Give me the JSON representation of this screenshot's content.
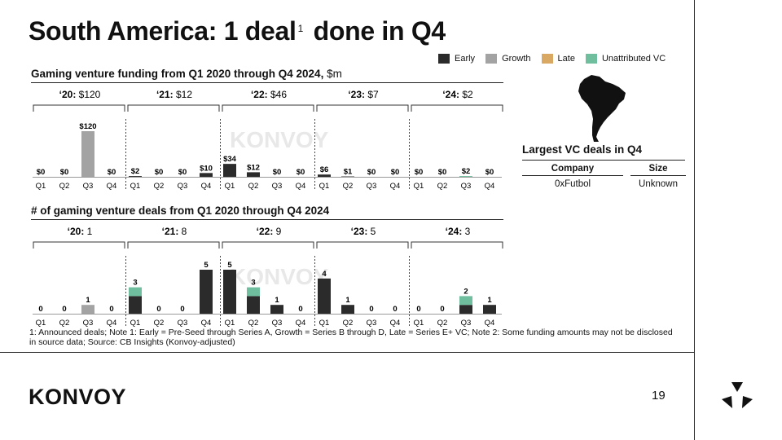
{
  "slide": {
    "title_main": "South America: 1 deal",
    "title_sup": "1",
    "title_end": " done in Q4",
    "page_number": "19",
    "brand": "KONVOY",
    "watermark": "KONVOY",
    "footnote": "1: Announced deals; Note 1: Early = Pre-Seed through Series A, Growth = Series B through D, Late = Series E+ VC; Note 2: Some funding amounts may not be disclosed in source data; Source: CB Insights (Konvoy-adjusted)"
  },
  "legend": [
    {
      "name": "Early",
      "color": "#2b2b2b"
    },
    {
      "name": "Growth",
      "color": "#a3a3a3"
    },
    {
      "name": "Late",
      "color": "#d9a964"
    },
    {
      "name": "Unattributed VC",
      "color": "#6fbf9e"
    }
  ],
  "largest_vc": {
    "title": "Largest VC deals in Q4",
    "columns": [
      "Company",
      "Size"
    ],
    "rows": [
      [
        "0xFutbol",
        "Unknown"
      ]
    ]
  },
  "chart_data": [
    {
      "type": "bar",
      "title": "Gaming venture funding from Q1 2020 through Q4 2024, ",
      "unit": "$m",
      "stacked": true,
      "categories": [
        "Q1",
        "Q2",
        "Q3",
        "Q4",
        "Q1",
        "Q2",
        "Q3",
        "Q4",
        "Q1",
        "Q2",
        "Q3",
        "Q4",
        "Q1",
        "Q2",
        "Q3",
        "Q4",
        "Q1",
        "Q2",
        "Q3",
        "Q4"
      ],
      "groups": [
        {
          "year": "‘20:",
          "total": "$120"
        },
        {
          "year": "‘21:",
          "total": "$12"
        },
        {
          "year": "‘22:",
          "total": "$46"
        },
        {
          "year": "‘23:",
          "total": "$7"
        },
        {
          "year": "‘24:",
          "total": "$2"
        }
      ],
      "series": [
        {
          "name": "Early",
          "color": "#2b2b2b",
          "values": [
            0,
            0,
            0,
            0,
            2,
            0,
            0,
            10,
            34,
            12,
            0,
            0,
            6,
            1,
            0,
            0,
            0,
            0,
            0,
            0
          ]
        },
        {
          "name": "Growth",
          "color": "#a3a3a3",
          "values": [
            0,
            0,
            120,
            0,
            0,
            0,
            0,
            0,
            0,
            0,
            0,
            0,
            0,
            0,
            0,
            0,
            0,
            0,
            0,
            0
          ]
        },
        {
          "name": "Unattributed VC",
          "color": "#6fbf9e",
          "values": [
            0,
            0,
            0,
            0,
            0,
            0,
            0,
            0,
            0,
            0,
            0,
            0,
            0,
            0,
            0,
            0,
            0,
            0,
            2,
            0
          ]
        }
      ],
      "labels": [
        "$0",
        "$0",
        "$120",
        "$0",
        "$2",
        "$0",
        "$0",
        "$10",
        "$34",
        "$12",
        "$0",
        "$0",
        "$6",
        "$1",
        "$0",
        "$0",
        "$0",
        "$0",
        "$2",
        "$0"
      ],
      "ylim": [
        0,
        120
      ]
    },
    {
      "type": "bar",
      "title": "# of gaming venture deals from Q1 2020 through Q4 2024",
      "unit": "",
      "stacked": true,
      "categories": [
        "Q1",
        "Q2",
        "Q3",
        "Q4",
        "Q1",
        "Q2",
        "Q3",
        "Q4",
        "Q1",
        "Q2",
        "Q3",
        "Q4",
        "Q1",
        "Q2",
        "Q3",
        "Q4",
        "Q1",
        "Q2",
        "Q3",
        "Q4"
      ],
      "groups": [
        {
          "year": "‘20:",
          "total": "1"
        },
        {
          "year": "‘21:",
          "total": "8"
        },
        {
          "year": "‘22:",
          "total": "9"
        },
        {
          "year": "‘23:",
          "total": "5"
        },
        {
          "year": "‘24:",
          "total": "3"
        }
      ],
      "series": [
        {
          "name": "Early",
          "color": "#2b2b2b",
          "values": [
            0,
            0,
            0,
            0,
            2,
            0,
            0,
            5,
            5,
            2,
            1,
            0,
            4,
            1,
            0,
            0,
            0,
            0,
            1,
            1
          ]
        },
        {
          "name": "Growth",
          "color": "#a3a3a3",
          "values": [
            0,
            0,
            1,
            0,
            0,
            0,
            0,
            0,
            0,
            0,
            0,
            0,
            0,
            0,
            0,
            0,
            0,
            0,
            0,
            0
          ]
        },
        {
          "name": "Unattributed VC",
          "color": "#6fbf9e",
          "values": [
            0,
            0,
            0,
            0,
            1,
            0,
            0,
            0,
            0,
            1,
            0,
            0,
            0,
            0,
            0,
            0,
            0,
            0,
            1,
            0
          ]
        }
      ],
      "labels": [
        "0",
        "0",
        "1",
        "0",
        "3",
        "0",
        "0",
        "5",
        "5",
        "3",
        "1",
        "0",
        "4",
        "1",
        "0",
        "0",
        "0",
        "0",
        "2",
        "1"
      ],
      "ylim": [
        0,
        5
      ]
    }
  ]
}
